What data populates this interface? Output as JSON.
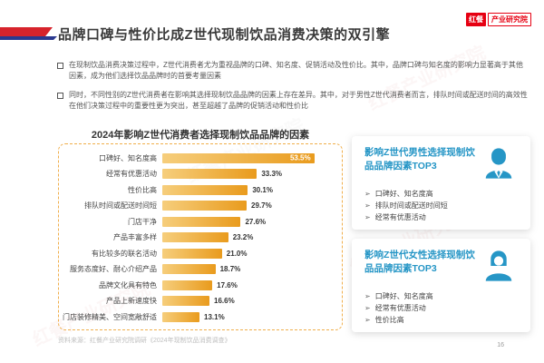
{
  "page": {
    "title": "品牌口碑与性价比成Z世代现制饮品消费决策的双引擎",
    "watermark": "红餐产业研究院",
    "source_note": "资料来源：红餐产业研究院调研《2024年现制饮品消费调查》",
    "page_number": "16"
  },
  "logo": {
    "brand": "红餐",
    "org": "产业研究院"
  },
  "bullets": [
    "在现制饮品消费决策过程中，Z世代消费者尤为重视品牌的口碑、知名度、促销活动及性价比。其中，品牌口碑与知名度的影响力显著高于其他因素，成为他们选择饮品品牌时的首要考量因素",
    "同时，不同性别的Z世代消费者在影响其选择现制饮品品牌的因素上存在差异。其中，对于男性Z世代消费者而言，排队时间或配送时间的高效性在他们决策过程中的重要性更为突出，甚至超越了品牌的促销活动和性价比"
  ],
  "chart_data": {
    "type": "bar",
    "orientation": "horizontal",
    "title": "2024年影响Z世代消费者选择现制饮品品牌的因素",
    "categories": [
      "口碑好、知名度高",
      "经常有优惠活动",
      "性价比高",
      "排队时间或配送时间短",
      "门店干净",
      "产品丰富多样",
      "有比较多的联名活动",
      "服务态度好、耐心介绍产品",
      "品牌文化具有特色",
      "产品上新速度快",
      "门店装修精美、空间宽敞舒适"
    ],
    "values": [
      53.5,
      33.3,
      30.1,
      29.7,
      27.6,
      23.2,
      21.0,
      18.7,
      17.6,
      16.6,
      13.1
    ],
    "value_labels": [
      "53.5%",
      "33.3%",
      "30.1%",
      "29.7%",
      "27.6%",
      "23.2%",
      "21.0%",
      "18.7%",
      "17.6%",
      "16.6%",
      "13.1%"
    ],
    "xlim": [
      0,
      60
    ],
    "grid": false,
    "legend": "none",
    "bar_gradient": [
      "#F6CE7C",
      "#E99B1D"
    ]
  },
  "panels": [
    {
      "title": "影响Z世代男性选择现制饮品品牌因素TOP3",
      "icon": "male-user-icon",
      "items": [
        "口碑好、知名度高",
        "排队时间或配送时间短",
        "经常有优惠活动"
      ]
    },
    {
      "title": "影响Z世代女性选择现制饮品品牌因素TOP3",
      "icon": "female-user-icon",
      "items": [
        "口碑好、知名度高",
        "经常有优惠活动",
        "性价比高"
      ]
    }
  ],
  "icons": {
    "bullet_square": "square-bullet",
    "arrow_bullet": "➢"
  },
  "colors": {
    "accent_red": "#D7232C",
    "accent_navy": "#2B3990",
    "logo_red": "#E60012",
    "panel_blue": "#2696C6",
    "bar_light": "#F6CE7C",
    "bar_dark": "#E99B1D",
    "dashed_border": "#F0AE4A"
  }
}
